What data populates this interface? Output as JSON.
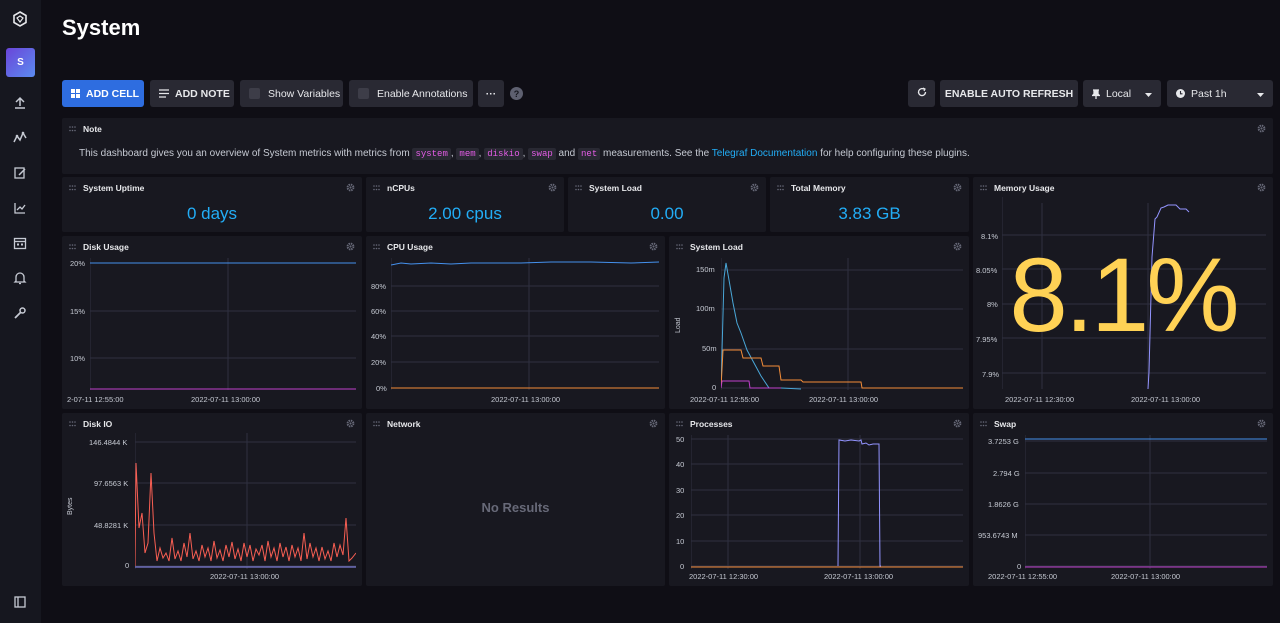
{
  "page": {
    "title": "System"
  },
  "nav": {
    "icons": [
      "influx-logo-icon",
      "org-avatar",
      "upload-icon",
      "data-explorer-icon",
      "notebook-icon",
      "dashboard-icon",
      "tasks-icon",
      "alerts-icon",
      "settings-icon",
      "collapse-nav-icon"
    ],
    "avatar_letter": "S"
  },
  "toolbar": {
    "add_cell": "ADD CELL",
    "add_note": "ADD NOTE",
    "show_variables": "Show Variables",
    "enable_annotations": "Enable Annotations",
    "more": "···",
    "help": "?",
    "auto_refresh": "ENABLE AUTO REFRESH",
    "timezone": "Local",
    "time_range": "Past 1h"
  },
  "note": {
    "title": "Note",
    "text_before": "This dashboard gives you an overview of System metrics with metrics from",
    "codes": [
      "system",
      "mem",
      "diskio",
      "swap",
      "net"
    ],
    "sep1": ",",
    "sep2": ",",
    "sep3": ",",
    "and": "and",
    "text_mid": "measurements. See the",
    "link": "Telegraf Documentation",
    "text_after": "for help configuring these plugins."
  },
  "stats": {
    "uptime": {
      "title": "System Uptime",
      "value": "0 days"
    },
    "ncpus": {
      "title": "nCPUs",
      "value": "2.00 cpus"
    },
    "load": {
      "title": "System Load",
      "value": "0.00"
    },
    "memory": {
      "title": "Total Memory",
      "value": "3.83 GB"
    }
  },
  "memory_usage": {
    "title": "Memory Usage",
    "big_value": "8.1%",
    "yticks": [
      "8.1%",
      "8.05%",
      "8%",
      "7.95%",
      "7.9%"
    ],
    "xticks": [
      "2022-07-11 12:30:00",
      "2022-07-11 13:00:00"
    ]
  },
  "disk_usage": {
    "title": "Disk Usage",
    "yticks": [
      "20%",
      "15%",
      "10%"
    ],
    "xticks": [
      "2-07-11 12:55:00",
      "2022-07-11 13:00:00"
    ]
  },
  "cpu_usage": {
    "title": "CPU Usage",
    "yticks": [
      "80%",
      "60%",
      "40%",
      "20%",
      "0%"
    ],
    "xticks": [
      "2022-07-11 13:00:00"
    ]
  },
  "system_load": {
    "title": "System Load",
    "ylabel": "Load",
    "yticks": [
      "150m",
      "100m",
      "50m",
      "0"
    ],
    "xticks": [
      "2022-07-11 12:55:00",
      "2022-07-11 13:00:00"
    ]
  },
  "disk_io": {
    "title": "Disk IO",
    "ylabel": "Bytes",
    "yticks": [
      "146.4844 K",
      "97.6563 K",
      "48.8281 K",
      "0"
    ],
    "xticks": [
      "2022-07-11 13:00:00"
    ]
  },
  "network": {
    "title": "Network",
    "empty": "No Results"
  },
  "processes": {
    "title": "Processes",
    "yticks": [
      "50",
      "40",
      "30",
      "20",
      "10",
      "0"
    ],
    "xticks": [
      "2022-07-11 12:30:00",
      "2022-07-11 13:00:00"
    ]
  },
  "swap": {
    "title": "Swap",
    "yticks": [
      "3.7253 G",
      "2.794 G",
      "1.8626 G",
      "953.6743 M",
      "0"
    ],
    "xticks": [
      "2022-07-11 12:55:00",
      "2022-07-11 13:00:00"
    ]
  },
  "colors": {
    "accent": "#22adf6",
    "primary_button": "#2e6de0",
    "gauge_yellow": "#ffd255",
    "line_blue": "#4591ed",
    "line_orange": "#f48d38",
    "line_purple": "#9394ff",
    "line_pink": "#f95f53"
  }
}
